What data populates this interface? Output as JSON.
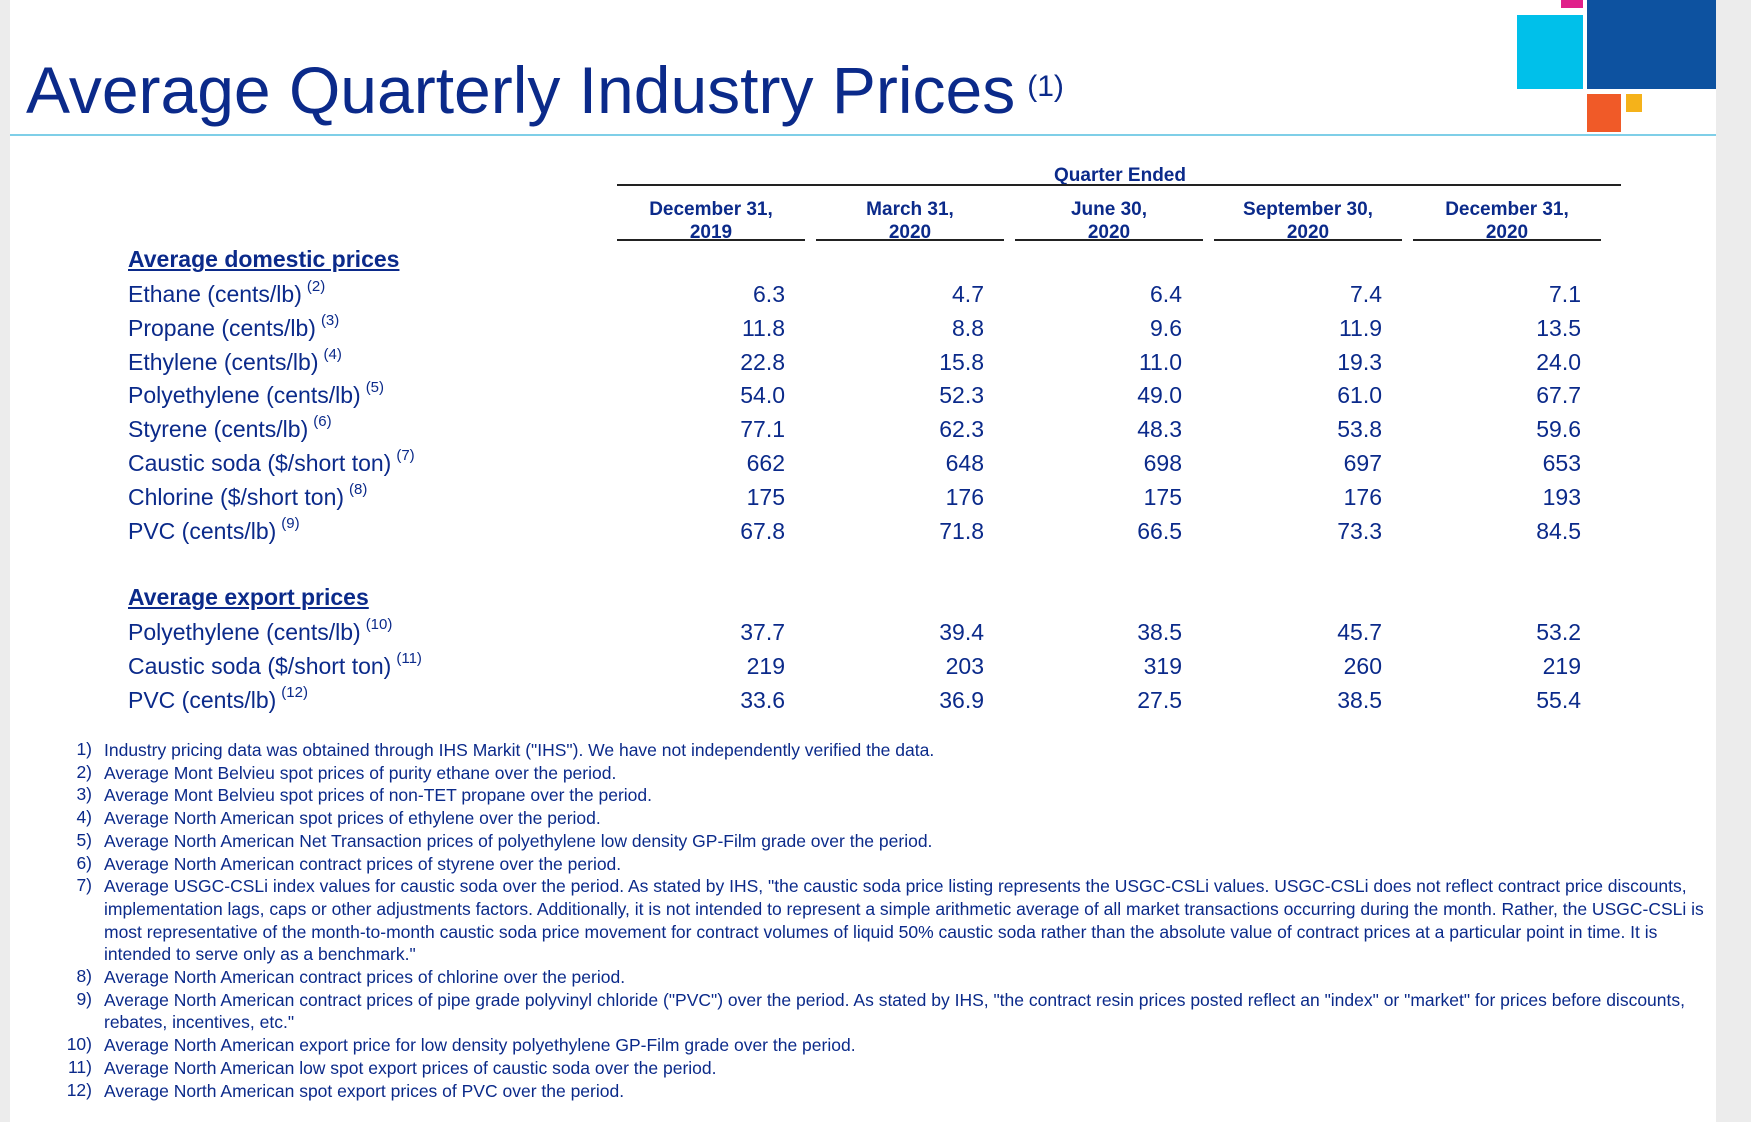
{
  "title": "Average Quarterly Industry Prices",
  "title_ref": "(1)",
  "column_group_label": "Quarter Ended",
  "columns": [
    {
      "line1": "December 31,",
      "line2": "2019"
    },
    {
      "line1": "March 31,",
      "line2": "2020"
    },
    {
      "line1": "June 30,",
      "line2": "2020"
    },
    {
      "line1": "September 30,",
      "line2": "2020"
    },
    {
      "line1": "December 31,",
      "line2": "2020"
    }
  ],
  "domestic": {
    "heading": "Average domestic prices",
    "rows": [
      {
        "label": "Ethane (cents/lb)",
        "ref": "(2)",
        "values": [
          "6.3",
          "4.7",
          "6.4",
          "7.4",
          "7.1"
        ]
      },
      {
        "label": "Propane (cents/lb)",
        "ref": "(3)",
        "values": [
          "11.8",
          "8.8",
          "9.6",
          "11.9",
          "13.5"
        ]
      },
      {
        "label": "Ethylene (cents/lb)",
        "ref": "(4)",
        "values": [
          "22.8",
          "15.8",
          "11.0",
          "19.3",
          "24.0"
        ]
      },
      {
        "label": "Polyethylene (cents/lb)",
        "ref": "(5)",
        "values": [
          "54.0",
          "52.3",
          "49.0",
          "61.0",
          "67.7"
        ]
      },
      {
        "label": "Styrene (cents/lb)",
        "ref": "(6)",
        "values": [
          "77.1",
          "62.3",
          "48.3",
          "53.8",
          "59.6"
        ]
      },
      {
        "label": "Caustic soda ($/short ton)",
        "ref": "(7)",
        "values": [
          "662",
          "648",
          "698",
          "697",
          "653"
        ]
      },
      {
        "label": "Chlorine ($/short ton)",
        "ref": "(8)",
        "values": [
          "175",
          "176",
          "175",
          "176",
          "193"
        ]
      },
      {
        "label": "PVC (cents/lb)",
        "ref": "(9)",
        "values": [
          "67.8",
          "71.8",
          "66.5",
          "73.3",
          "84.5"
        ]
      }
    ]
  },
  "export": {
    "heading": "Average export prices",
    "rows": [
      {
        "label": "Polyethylene (cents/lb)",
        "ref": "(10)",
        "values": [
          "37.7",
          "39.4",
          "38.5",
          "45.7",
          "53.2"
        ]
      },
      {
        "label": "Caustic soda ($/short ton)",
        "ref": "(11)",
        "values": [
          "219",
          "203",
          "319",
          "260",
          "219"
        ]
      },
      {
        "label": "PVC (cents/lb)",
        "ref": "(12)",
        "values": [
          "33.6",
          "36.9",
          "27.5",
          "38.5",
          "55.4"
        ]
      }
    ]
  },
  "footnotes": [
    {
      "num": "1)",
      "text": "Industry pricing data was obtained through IHS Markit (\"IHS\"). We have not independently verified the data."
    },
    {
      "num": "2)",
      "text": "Average Mont Belvieu spot prices of purity ethane over the period."
    },
    {
      "num": "3)",
      "text": "Average Mont Belvieu spot prices of non-TET propane over the period."
    },
    {
      "num": "4)",
      "text": "Average North American spot prices of ethylene over the period."
    },
    {
      "num": "5)",
      "text": "Average North American Net Transaction prices of polyethylene low density GP-Film grade over the period."
    },
    {
      "num": "6)",
      "text": "Average North American contract prices of styrene over the period."
    },
    {
      "num": "7)",
      "text": "Average USGC-CSLi index values for caustic soda over the period. As stated by IHS, \"the caustic soda price listing represents the USGC-CSLi values. USGC-CSLi does not reflect contract price discounts, implementation lags, caps or other adjustments factors. Additionally, it is not intended to represent a simple arithmetic average of all market transactions occurring during the month. Rather, the USGC-CSLi is most representative of the month-to-month caustic soda price movement for contract volumes of liquid 50% caustic soda rather than the absolute value of contract prices at a particular point in time. It is intended to serve only as a benchmark.\""
    },
    {
      "num": "8)",
      "text": "Average North American contract prices of chlorine over the period."
    },
    {
      "num": "9)",
      "text": "Average North American contract prices of pipe grade polyvinyl chloride (\"PVC\") over the period. As stated by IHS, \"the contract resin prices posted reflect an \"index\" or \"market\" for prices before discounts, rebates, incentives, etc.\""
    },
    {
      "num": "10)",
      "text": "Average North American export price for low density polyethylene GP-Film grade over the period."
    },
    {
      "num": "11)",
      "text": "Average North American low spot export prices of caustic soda over the period."
    },
    {
      "num": "12)",
      "text": "Average North American spot export prices of PVC over the period."
    }
  ],
  "colors": {
    "text": "#0b2a8a",
    "deco_dark_blue": "#0d52a0",
    "deco_cyan": "#00c0ea",
    "deco_orange": "#f05a28",
    "deco_yellow": "#f5b21a",
    "deco_magenta": "#e0208a",
    "rule": "#7fcfe8"
  }
}
